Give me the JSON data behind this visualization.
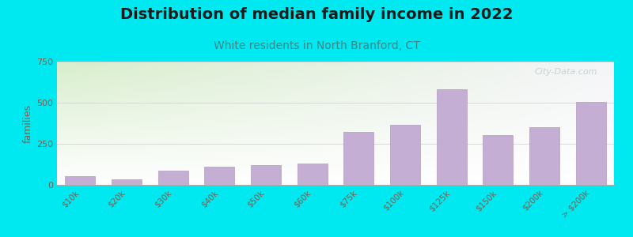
{
  "title": "Distribution of median family income in 2022",
  "subtitle": "White residents in North Branford, CT",
  "categories": [
    "$10k",
    "$20k",
    "$30k",
    "$40k",
    "$50k",
    "$60k",
    "$75k",
    "$100k",
    "$125k",
    "$150k",
    "$200k",
    "> $200k"
  ],
  "values": [
    55,
    35,
    85,
    110,
    120,
    130,
    320,
    365,
    580,
    305,
    350,
    505
  ],
  "bar_color": "#c4aed4",
  "bar_edge_color": "#b09cc0",
  "background_outer": "#00e8f0",
  "plot_bg_top_left": "#d8eecc",
  "plot_bg_right": "#f5f5f8",
  "title_color": "#1a1a1a",
  "subtitle_color": "#3a8888",
  "axis_label_color": "#7a6050",
  "tick_color": "#7a6050",
  "ylabel": "families",
  "ylim": [
    0,
    750
  ],
  "yticks": [
    0,
    250,
    500,
    750
  ],
  "watermark": "City-Data.com",
  "title_fontsize": 14,
  "subtitle_fontsize": 10,
  "ylabel_fontsize": 9
}
